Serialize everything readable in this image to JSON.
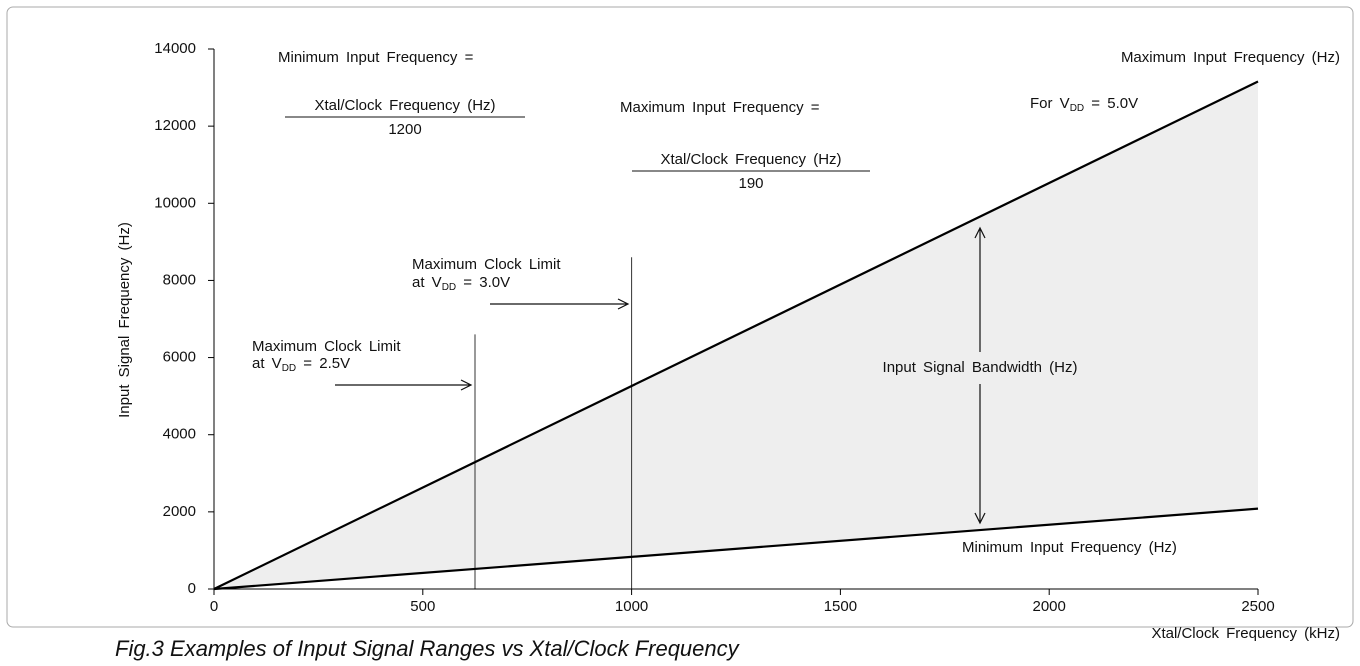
{
  "chart_data": {
    "type": "line",
    "title": "Fig.3 Examples of Input Signal Ranges vs Xtal/Clock Frequency",
    "xlabel": "Xtal/Clock Frequency (kHz)",
    "ylabel": "Input Signal Frequency (Hz)",
    "x": [
      0,
      2500
    ],
    "series": [
      {
        "name": "Maximum Input Frequency (Hz)",
        "color": "#000000",
        "values": [
          0,
          13158
        ]
      },
      {
        "name": "Minimum Input Frequency (Hz)",
        "color": "#000000",
        "values": [
          0,
          2083
        ]
      }
    ],
    "band_color": "#eeeeee",
    "xlim": [
      0,
      2500
    ],
    "ylim": [
      0,
      14000
    ],
    "xticks": [
      0,
      500,
      1000,
      1500,
      2000,
      2500
    ],
    "yticks": [
      0,
      2000,
      4000,
      6000,
      8000,
      10000,
      12000,
      14000
    ],
    "reference_lines": [
      {
        "x": 625,
        "top": 6600
      },
      {
        "x": 1000,
        "top": 8600
      }
    ],
    "annotations": {
      "min_formula": {
        "text": "Minimum Input Frequency =",
        "numerator": "Xtal/Clock Frequency (Hz)",
        "denominator": "1200"
      },
      "max_formula": {
        "text": "Maximum Input Frequency =",
        "numerator": "Xtal/Clock Frequency (Hz)",
        "denominator": "190"
      },
      "vdd_note": {
        "prefix": "For V",
        "sub": "DD",
        "suffix": " = 5.0V"
      },
      "limit_3v": {
        "title": "Maximum Clock Limit",
        "prefix": "at V",
        "sub": "DD",
        "suffix": " = 3.0V"
      },
      "limit_25v": {
        "title": "Maximum Clock Limit",
        "prefix": "at V",
        "sub": "DD",
        "suffix": " = 2.5V"
      },
      "bandwidth": "Input Signal Bandwidth (Hz)"
    }
  }
}
